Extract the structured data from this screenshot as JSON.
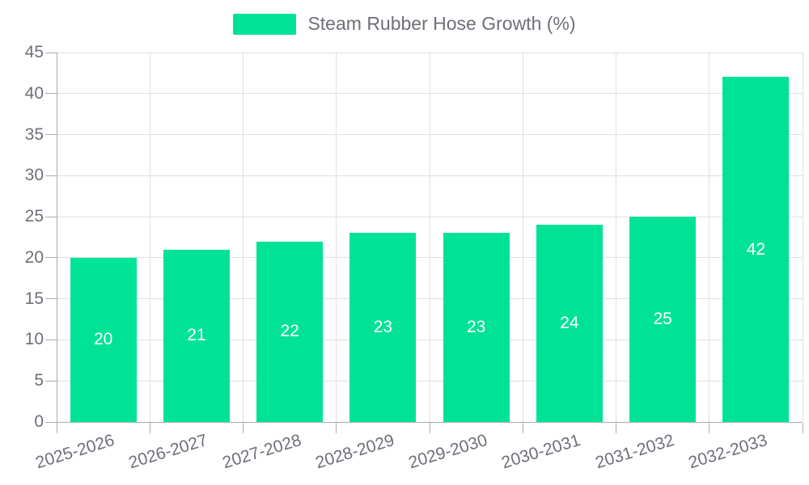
{
  "chart_data": {
    "type": "bar",
    "title": "",
    "legend": {
      "label": "Steam Rubber Hose Growth (%)",
      "position": "top"
    },
    "categories": [
      "2025-2026",
      "2026-2027",
      "2027-2028",
      "2028-2029",
      "2029-2030",
      "2030-2031",
      "2031-2032",
      "2032-2033"
    ],
    "series": [
      {
        "name": "Steam Rubber Hose Growth (%)",
        "values": [
          20,
          21,
          22,
          23,
          23,
          24,
          25,
          42
        ]
      }
    ],
    "value_labels": [
      "20",
      "21",
      "22",
      "23",
      "23",
      "24",
      "25",
      "42"
    ],
    "xlabel": "",
    "ylabel": "",
    "ylim": [
      0,
      45
    ],
    "yticks": [
      0,
      5,
      10,
      15,
      20,
      25,
      30,
      35,
      40,
      45
    ],
    "grid": true
  },
  "colors": {
    "bar": "#00E396",
    "grid_line": "#E0E0E0",
    "axis_line": "#ACACAC",
    "tick_text": "#6E7079",
    "legend_text": "#6E7079",
    "value_label_text": "#FFFFFF",
    "background": "#FFFFFF"
  }
}
